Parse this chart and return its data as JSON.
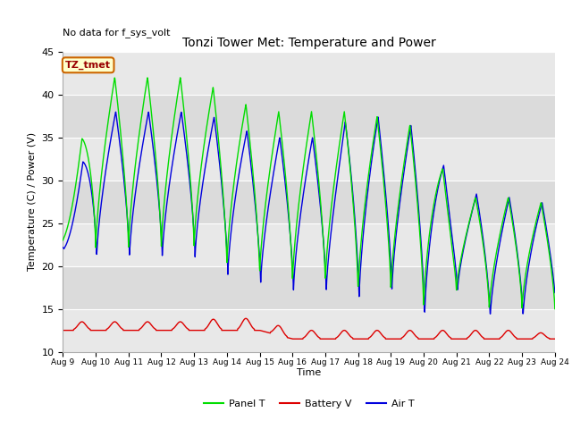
{
  "title": "Tonzi Tower Met: Temperature and Power",
  "ylabel": "Temperature (C) / Power (V)",
  "xlabel": "Time",
  "annotation_text": "No data for f_sys_volt",
  "legend_box_text": "TZ_tmet",
  "xlim_start": 0,
  "xlim_end": 15,
  "ylim": [
    10,
    45
  ],
  "yticks": [
    10,
    15,
    20,
    25,
    30,
    35,
    40,
    45
  ],
  "xtick_labels": [
    "Aug 9",
    "Aug 10",
    "Aug 11",
    "Aug 12",
    "Aug 13",
    "Aug 14",
    "Aug 15",
    "Aug 16",
    "Aug 17",
    "Aug 18",
    "Aug 19",
    "Aug 20",
    "Aug 21",
    "Aug 22",
    "Aug 23",
    "Aug 24"
  ],
  "panel_color": "#00dd00",
  "battery_color": "#dd0000",
  "air_color": "#0000dd",
  "bg_plot": "#e8e8e8",
  "bg_figure": "#ffffff",
  "grid_color": "#ffffff",
  "legend_labels": [
    "Panel T",
    "Battery V",
    "Air T"
  ],
  "figsize": [
    6.4,
    4.8
  ],
  "dpi": 100
}
